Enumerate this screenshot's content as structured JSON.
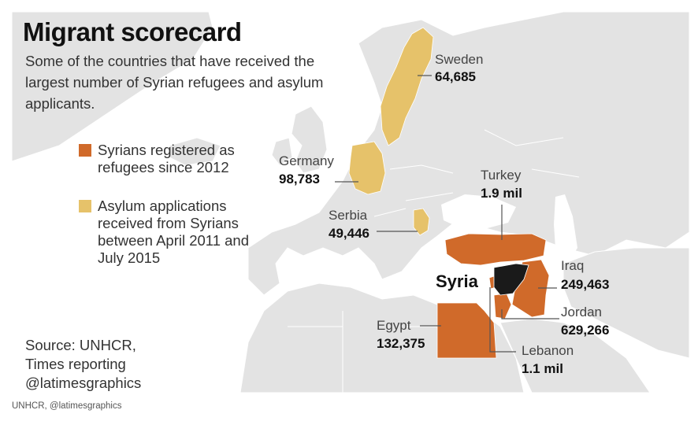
{
  "title": "Migrant scorecard",
  "subtitle": "Some of the countries that have received the largest number of Syrian refugees and asylum applicants.",
  "legend": [
    {
      "label": "Syrians registered as refugees since 2012",
      "color": "#d06a2a"
    },
    {
      "label": "Asylum applications received from Syrians between April 2011 and July 2015",
      "color": "#e6c26a"
    }
  ],
  "focus_country": "Syria",
  "countries": {
    "sweden": {
      "name": "Sweden",
      "value": "64,685",
      "category": "asylum"
    },
    "germany": {
      "name": "Germany",
      "value": "98,783",
      "category": "asylum"
    },
    "serbia": {
      "name": "Serbia",
      "value": "49,446",
      "category": "asylum"
    },
    "turkey": {
      "name": "Turkey",
      "value": "1.9 mil",
      "category": "refugee"
    },
    "iraq": {
      "name": "Iraq",
      "value": "249,463",
      "category": "refugee"
    },
    "jordan": {
      "name": "Jordan",
      "value": "629,266",
      "category": "refugee"
    },
    "lebanon": {
      "name": "Lebanon",
      "value": "1.1 mil",
      "category": "refugee"
    },
    "egypt": {
      "name": "Egypt",
      "value": "132,375",
      "category": "refugee"
    }
  },
  "source_lines": [
    "Source: UNHCR,",
    "Times reporting",
    "@latimesgraphics"
  ],
  "credit": "UNHCR, @latimesgraphics"
}
